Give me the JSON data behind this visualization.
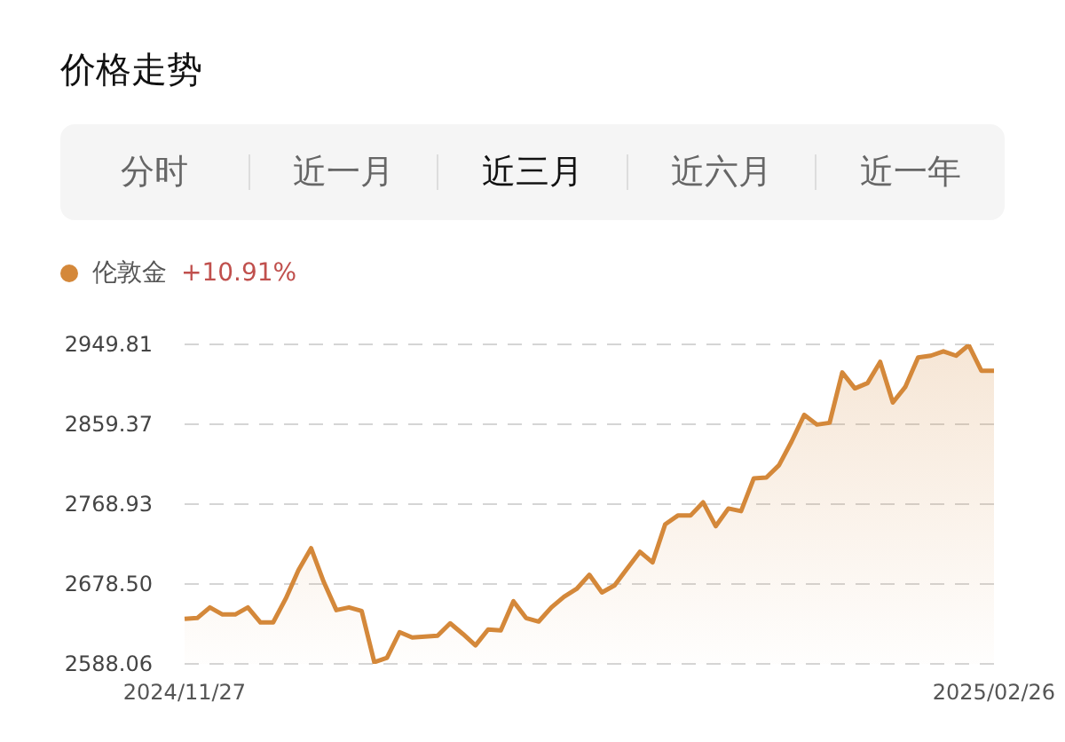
{
  "chart_data": {
    "type": "area",
    "title": "价格走势",
    "subtitle": "+10.91%",
    "annotations": [
      "分时",
      "近一月",
      "近三月",
      "近六月",
      "近一年"
    ],
    "categories": [
      "2024/11/27",
      null,
      null,
      null,
      null,
      null,
      null,
      null,
      null,
      null,
      null,
      null,
      null,
      null,
      null,
      null,
      null,
      null,
      null,
      null,
      null,
      null,
      null,
      null,
      null,
      null,
      null,
      null,
      null,
      null,
      null,
      null,
      null,
      null,
      null,
      null,
      null,
      null,
      null,
      null,
      null,
      null,
      null,
      null,
      null,
      null,
      null,
      null,
      null,
      null,
      null,
      null,
      null,
      null,
      null,
      null,
      null,
      null,
      null,
      null,
      null,
      null,
      null,
      null,
      "2025/02/26"
    ],
    "series": [
      {
        "name": "伦敦金",
        "color": "#d4883a",
        "values": [
          2639,
          2640,
          2652,
          2644,
          2644,
          2652,
          2635,
          2635,
          2662,
          2694,
          2719,
          2681,
          2649,
          2652,
          2648,
          2590,
          2595,
          2624,
          2618,
          2619,
          2620,
          2634,
          2622,
          2609,
          2627,
          2626,
          2659,
          2640,
          2636,
          2652,
          2664,
          2673,
          2689,
          2669,
          2677,
          2696,
          2715,
          2703,
          2746,
          2756,
          2756,
          2771,
          2744,
          2764,
          2761,
          2798,
          2799,
          2813,
          2840,
          2870,
          2859,
          2861,
          2918,
          2900,
          2906,
          2930,
          2884,
          2902,
          2935,
          2937,
          2942,
          2937,
          2949,
          2920,
          2920
        ]
      }
    ],
    "ylim": [
      2588.06,
      2949.81
    ],
    "yticks": [
      2588.06,
      {
        "value": 2678.5,
        "label": "2678.50"
      },
      2768.93,
      2859.37,
      2949.81
    ],
    "grid": "y",
    "legend": "top left",
    "marker": "none"
  }
}
